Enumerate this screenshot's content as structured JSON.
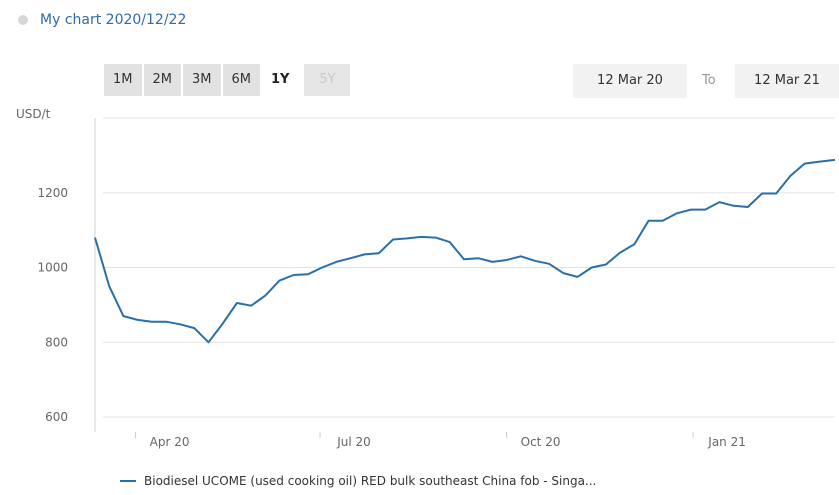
{
  "header": {
    "title": "My chart 2020/12/22",
    "icon": "diamond-icon"
  },
  "range_buttons": [
    {
      "label": "1M",
      "state": "normal"
    },
    {
      "label": "2M",
      "state": "normal"
    },
    {
      "label": "3M",
      "state": "normal"
    },
    {
      "label": "6M",
      "state": "normal"
    },
    {
      "label": "1Y",
      "state": "active"
    },
    {
      "label": "5Y",
      "state": "disabled"
    }
  ],
  "date_range": {
    "from": "12 Mar 20",
    "to_label": "To",
    "to": "12 Mar 21"
  },
  "chart_data": {
    "type": "line",
    "ylabel": "USD/t",
    "ylim": [
      560,
      1400
    ],
    "yticks": [
      600,
      800,
      1000,
      1200
    ],
    "xticks": [
      {
        "label": "Apr 20",
        "date": "2020-04-01"
      },
      {
        "label": "Jul 20",
        "date": "2020-07-01"
      },
      {
        "label": "Oct 20",
        "date": "2020-10-01"
      },
      {
        "label": "Jan 21",
        "date": "2021-01-01"
      }
    ],
    "grid": true,
    "color": "#2b6fa8",
    "series": [
      {
        "name": "Biodiesel UCOME (used cooking oil) RED bulk southeast China fob - Singa...",
        "points": [
          [
            "2020-03-12",
            1080
          ],
          [
            "2020-03-19",
            950
          ],
          [
            "2020-03-26",
            870
          ],
          [
            "2020-04-02",
            860
          ],
          [
            "2020-04-09",
            855
          ],
          [
            "2020-04-16",
            855
          ],
          [
            "2020-04-23",
            848
          ],
          [
            "2020-04-30",
            838
          ],
          [
            "2020-05-07",
            800
          ],
          [
            "2020-05-14",
            850
          ],
          [
            "2020-05-21",
            905
          ],
          [
            "2020-05-28",
            898
          ],
          [
            "2020-06-04",
            925
          ],
          [
            "2020-06-11",
            965
          ],
          [
            "2020-06-18",
            980
          ],
          [
            "2020-06-25",
            982
          ],
          [
            "2020-07-02",
            1000
          ],
          [
            "2020-07-09",
            1015
          ],
          [
            "2020-07-16",
            1025
          ],
          [
            "2020-07-23",
            1035
          ],
          [
            "2020-07-30",
            1038
          ],
          [
            "2020-08-06",
            1075
          ],
          [
            "2020-08-13",
            1078
          ],
          [
            "2020-08-20",
            1082
          ],
          [
            "2020-08-27",
            1080
          ],
          [
            "2020-09-03",
            1068
          ],
          [
            "2020-09-10",
            1022
          ],
          [
            "2020-09-17",
            1025
          ],
          [
            "2020-09-24",
            1015
          ],
          [
            "2020-10-01",
            1020
          ],
          [
            "2020-10-08",
            1030
          ],
          [
            "2020-10-15",
            1018
          ],
          [
            "2020-10-22",
            1010
          ],
          [
            "2020-10-29",
            985
          ],
          [
            "2020-11-05",
            975
          ],
          [
            "2020-11-12",
            1000
          ],
          [
            "2020-11-19",
            1008
          ],
          [
            "2020-11-26",
            1040
          ],
          [
            "2020-12-03",
            1062
          ],
          [
            "2020-12-10",
            1125
          ],
          [
            "2020-12-17",
            1125
          ],
          [
            "2020-12-24",
            1145
          ],
          [
            "2020-12-31",
            1155
          ],
          [
            "2021-01-07",
            1155
          ],
          [
            "2021-01-14",
            1175
          ],
          [
            "2021-01-21",
            1165
          ],
          [
            "2021-01-28",
            1162
          ],
          [
            "2021-02-04",
            1198
          ],
          [
            "2021-02-11",
            1198
          ],
          [
            "2021-02-18",
            1245
          ],
          [
            "2021-02-25",
            1278
          ],
          [
            "2021-03-04",
            1283
          ],
          [
            "2021-03-12",
            1288
          ]
        ]
      }
    ]
  }
}
